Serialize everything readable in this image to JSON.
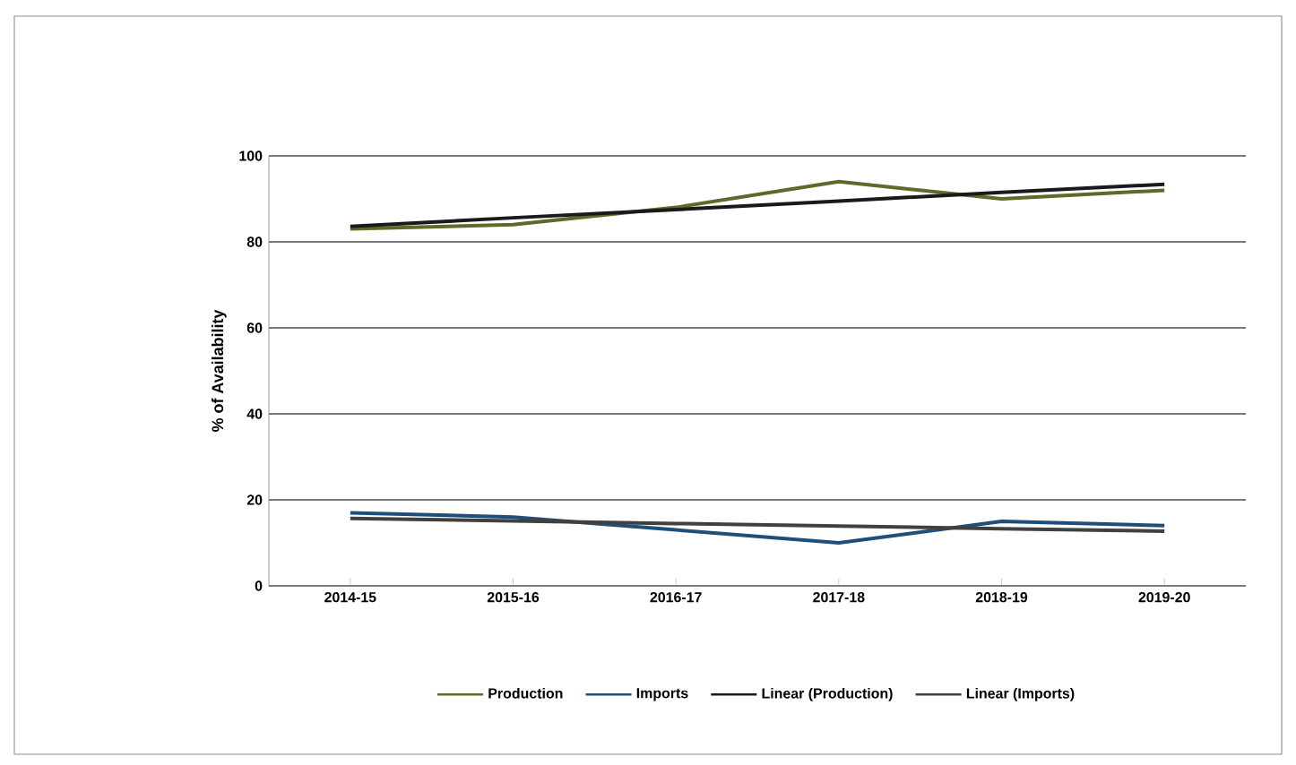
{
  "chart_data": {
    "type": "line",
    "ylabel": "% of Availability",
    "categories": [
      "2014-15",
      "2015-16",
      "2016-17",
      "2017-18",
      "2018-19",
      "2019-20"
    ],
    "series": [
      {
        "name": "Production",
        "color": "#5a6b2a",
        "values": [
          83,
          84,
          88,
          94,
          90,
          92
        ]
      },
      {
        "name": "Imports",
        "color": "#1f4e79",
        "values": [
          17,
          16,
          13,
          10,
          15,
          14
        ]
      },
      {
        "name": "Linear (Production)",
        "color": "#1a1a1a",
        "values": [
          83.6,
          85.6,
          87.5,
          89.5,
          91.5,
          93.4
        ]
      },
      {
        "name": "Linear (Imports)",
        "color": "#404040",
        "values": [
          15.7,
          15.1,
          14.5,
          13.9,
          13.3,
          12.7
        ]
      }
    ],
    "ylim": [
      0,
      100
    ],
    "yticks": [
      0,
      20,
      40,
      60,
      80,
      100
    ],
    "grid": "y",
    "legend": "bottom",
    "marker": "none",
    "line_style": "solid"
  }
}
